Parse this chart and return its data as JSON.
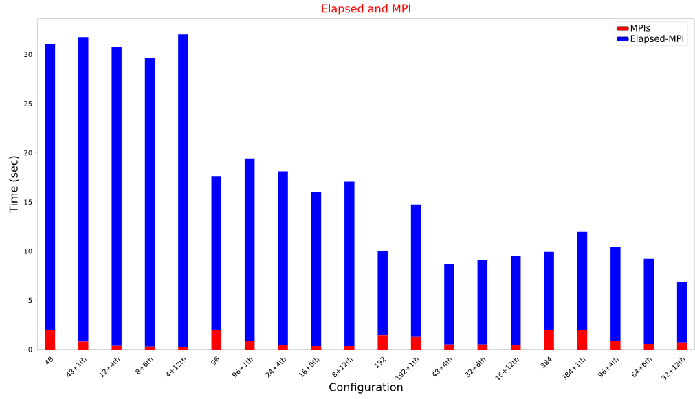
{
  "chart_data": {
    "type": "bar",
    "title": "Elapsed and MPI",
    "xlabel": "Configuration",
    "ylabel": "Time (sec)",
    "categories": [
      "48",
      "48+1th",
      "12+4th",
      "8+6th",
      "4+12th",
      "96",
      "96+1th",
      "24+4th",
      "16+6th",
      "8+12th",
      "192",
      "192+1th",
      "48+4th",
      "32+6th",
      "16+12th",
      "384",
      "384+1th",
      "96+4th",
      "64+6th",
      "32+12th"
    ],
    "stacked": true,
    "series": [
      {
        "name": "MPIs",
        "color": "#ff0000",
        "values": [
          2.02,
          0.81,
          0.37,
          0.3,
          0.23,
          1.98,
          0.86,
          0.42,
          0.35,
          0.35,
          1.44,
          1.35,
          0.51,
          0.51,
          0.44,
          1.95,
          1.98,
          0.84,
          0.56,
          0.72
        ]
      },
      {
        "name": "Elapsed-MPI",
        "color": "#0000ff",
        "values": [
          29.05,
          30.94,
          30.35,
          29.3,
          31.8,
          15.6,
          18.56,
          17.7,
          15.65,
          16.72,
          8.56,
          13.4,
          8.17,
          8.59,
          9.06,
          7.98,
          9.97,
          9.58,
          8.67,
          6.15
        ]
      }
    ],
    "ylim": [
      0,
      33.65
    ],
    "yticks": [
      0,
      5,
      10,
      15,
      20,
      25,
      30
    ],
    "legend": "top right"
  }
}
